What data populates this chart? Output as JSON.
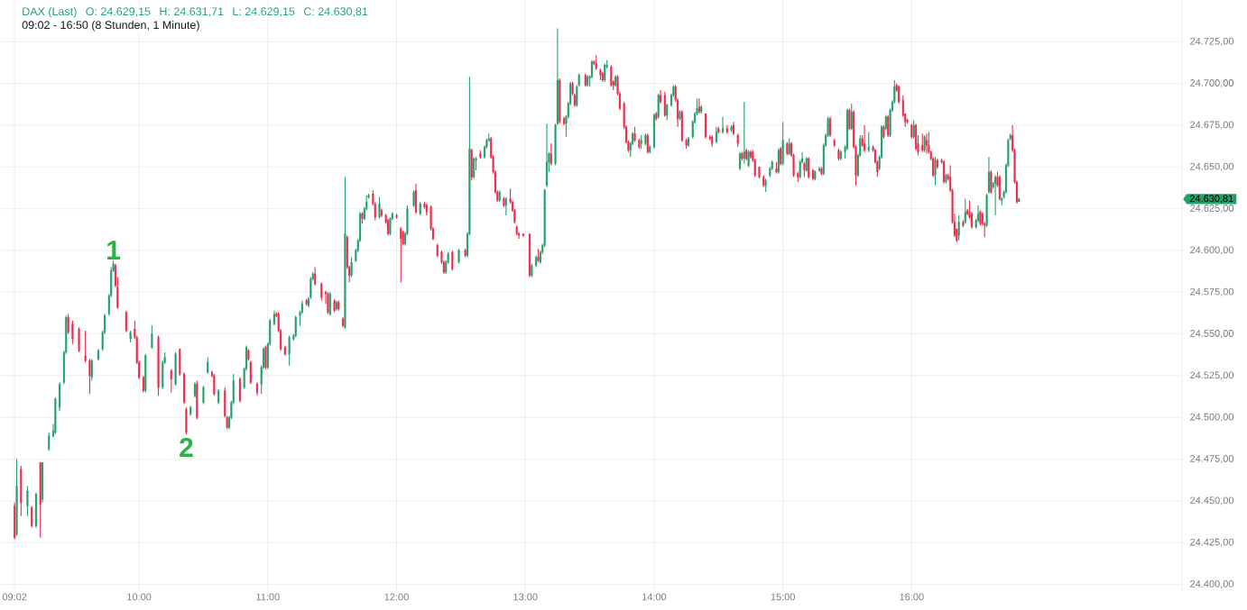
{
  "chart_data": {
    "type": "candlestick",
    "title": "DAX (Last)",
    "subtitle": "09:02 - 16:50 (8 Stunden, 1 Minute)",
    "annotations": [
      "O: 24.629,15",
      "H: 24.631,71",
      "L: 24.629,15",
      "C: 24.630,81",
      "24.630,81",
      {
        "text": "1",
        "x": 9.8,
        "y": 24594
      },
      {
        "text": "2",
        "x": 10.3667,
        "y": 24490
      }
    ],
    "x": [
      9.0333,
      9.05,
      9.0833,
      9.1333,
      9.1667,
      9.2,
      9.2333,
      9.25,
      9.3,
      9.3333,
      9.35,
      9.3833,
      9.4167,
      9.4333,
      9.45,
      9.4833,
      9.5333,
      9.5833,
      9.6167,
      9.6333,
      9.6833,
      9.7167,
      9.7333,
      9.7667,
      9.7833,
      9.8,
      9.8167,
      9.8333,
      9.9,
      9.9333,
      9.9667,
      9.9833,
      10.0,
      10.0333,
      10.05,
      10.1,
      10.15,
      10.1833,
      10.2,
      10.25,
      10.2833,
      10.3167,
      10.35,
      10.3667,
      10.4,
      10.4333,
      10.45,
      10.5,
      10.5333,
      10.5667,
      10.5833,
      10.6167,
      10.6667,
      10.6833,
      10.7,
      10.7167,
      10.7333,
      10.7833,
      10.8167,
      10.8333,
      10.85,
      10.8667,
      10.9167,
      10.95,
      10.9667,
      10.9833,
      11.0,
      11.0167,
      11.05,
      11.0667,
      11.0833,
      11.1,
      11.1333,
      11.1667,
      11.2,
      11.2167,
      11.25,
      11.2667,
      11.3,
      11.3167,
      11.3333,
      11.35,
      11.3667,
      11.4167,
      11.45,
      11.4667,
      11.4833,
      11.5167,
      11.5333,
      11.55,
      11.5833,
      11.6,
      11.6167,
      11.6333,
      11.65,
      11.6833,
      11.7,
      11.7167,
      11.7333,
      11.75,
      11.7667,
      11.7833,
      11.8167,
      11.8333,
      11.8667,
      11.8833,
      11.9167,
      11.9333,
      11.95,
      11.9667,
      12.0,
      12.0333,
      12.05,
      12.0667,
      12.0833,
      12.1333,
      12.15,
      12.1833,
      12.2167,
      12.2333,
      12.2667,
      12.2833,
      12.3167,
      12.35,
      12.3667,
      12.3833,
      12.4,
      12.4333,
      12.4833,
      12.5333,
      12.55,
      12.5667,
      12.5833,
      12.6,
      12.6167,
      12.65,
      12.6833,
      12.7,
      12.7167,
      12.7333,
      12.75,
      12.7667,
      12.7833,
      12.8,
      12.8333,
      12.85,
      12.8833,
      12.9,
      12.9167,
      12.9333,
      12.95,
      12.9833,
      13.0333,
      13.05,
      13.0833,
      13.1,
      13.1167,
      13.1333,
      13.15,
      13.1667,
      13.1833,
      13.2,
      13.2333,
      13.25,
      13.2667,
      13.3,
      13.3167,
      13.3333,
      13.35,
      13.3667,
      13.3833,
      13.4,
      13.4167,
      13.4667,
      13.4833,
      13.5,
      13.5167,
      13.5333,
      13.55,
      13.5833,
      13.6,
      13.6167,
      13.6333,
      13.6667,
      13.6833,
      13.7,
      13.7167,
      13.7333,
      13.7667,
      13.7833,
      13.8,
      13.8167,
      13.8333,
      13.85,
      13.8833,
      13.9,
      13.9333,
      13.95,
      13.9667,
      14.0,
      14.0167,
      14.0333,
      14.05,
      14.0833,
      14.1,
      14.1333,
      14.15,
      14.1667,
      14.1833,
      14.2,
      14.2167,
      14.25,
      14.2667,
      14.3,
      14.3167,
      14.3333,
      14.35,
      14.3667,
      14.4,
      14.4333,
      14.45,
      14.4833,
      14.5,
      14.5333,
      14.5667,
      14.6,
      14.6167,
      14.65,
      14.6667,
      14.6833,
      14.7,
      14.7167,
      14.7333,
      14.75,
      14.7667,
      14.7833,
      14.8167,
      14.85,
      14.8667,
      14.9,
      14.9167,
      14.95,
      14.9667,
      14.9833,
      15.0,
      15.0333,
      15.05,
      15.0667,
      15.0833,
      15.1167,
      15.1333,
      15.15,
      15.1667,
      15.1833,
      15.2,
      15.2333,
      15.25,
      15.2833,
      15.3,
      15.3167,
      15.3333,
      15.35,
      15.3667,
      15.4,
      15.4333,
      15.45,
      15.4833,
      15.5,
      15.5167,
      15.5333,
      15.55,
      15.5667,
      15.5833,
      15.6,
      15.6167,
      15.6333,
      15.6667,
      15.7,
      15.7167,
      15.7333,
      15.75,
      15.7667,
      15.7833,
      15.8,
      15.8167,
      15.8333,
      15.85,
      15.8667,
      15.8833,
      15.9,
      15.9333,
      15.95,
      15.9667,
      16.0,
      16.0167,
      16.0333,
      16.05,
      16.0833,
      16.1,
      16.1167,
      16.1333,
      16.15,
      16.1667,
      16.1833,
      16.2,
      16.2333,
      16.25,
      16.2667,
      16.2833,
      16.3,
      16.3167,
      16.3333,
      16.35,
      16.3667,
      16.4,
      16.4167,
      16.4333,
      16.45,
      16.4667,
      16.5,
      16.5167,
      16.5333,
      16.55,
      16.5667,
      16.5833,
      16.6,
      16.6167,
      16.6333,
      16.65,
      16.6667,
      16.6833,
      16.7,
      16.7167,
      16.7333,
      16.75,
      16.7667,
      16.7833,
      16.8,
      16.8167,
      16.8333
    ],
    "ohlc": [
      [
        24447,
        24449,
        24427,
        24428
      ],
      [
        24430,
        24475,
        24429,
        24459
      ],
      [
        24469,
        24471,
        24441,
        24449
      ],
      [
        24447,
        24459,
        24441,
        24456
      ],
      [
        24446,
        24447,
        24434,
        24435
      ],
      [
        24435,
        24455,
        24434,
        24454
      ],
      [
        24473,
        24473,
        24428,
        24448
      ],
      [
        24451,
        24473,
        24449,
        24473
      ],
      [
        24481,
        24491,
        24480,
        24489
      ],
      [
        24489,
        24496,
        24488,
        24492
      ],
      [
        24491,
        24512,
        24490,
        24511
      ],
      [
        24506,
        24521,
        24504,
        24520
      ],
      [
        24521,
        24540,
        24520,
        24539
      ],
      [
        24539,
        24561,
        24538,
        24560
      ],
      [
        24560,
        24562,
        24550,
        24551
      ],
      [
        24556,
        24558,
        24544,
        24547
      ],
      [
        24553,
        24554,
        24539,
        24540
      ],
      [
        24537,
        24552,
        24533,
        24534
      ],
      [
        24534,
        24535,
        24514,
        24525
      ],
      [
        24524,
        24535,
        24522,
        24534
      ],
      [
        24535,
        24541,
        24534,
        24540
      ],
      [
        24541,
        24552,
        24540,
        24551
      ],
      [
        24551,
        24562,
        24550,
        24561
      ],
      [
        24562,
        24574,
        24561,
        24573
      ],
      [
        24573,
        24590,
        24572,
        24588
      ],
      [
        24588,
        24594,
        24587,
        24592
      ],
      [
        24591,
        24592,
        24578,
        24579
      ],
      [
        24578,
        24584,
        24565,
        24566
      ],
      [
        24563,
        24564,
        24551,
        24552
      ],
      [
        24547,
        24552,
        24545,
        24551
      ],
      [
        24553,
        24558,
        24547,
        24548
      ],
      [
        24548,
        24549,
        24532,
        24533
      ],
      [
        24533,
        24534,
        24523,
        24524
      ],
      [
        24524,
        24525,
        24515,
        24516
      ],
      [
        24516,
        24538,
        24515,
        24537
      ],
      [
        24542,
        24555,
        24541,
        24550
      ],
      [
        24548,
        24549,
        24513,
        24518
      ],
      [
        24518,
        24534,
        24517,
        24533
      ],
      [
        24533,
        24539,
        24532,
        24536
      ],
      [
        24528,
        24529,
        24515,
        24523
      ],
      [
        24520,
        24539,
        24519,
        24538
      ],
      [
        24541,
        24541,
        24525,
        24526
      ],
      [
        24526,
        24527,
        24508,
        24509
      ],
      [
        24505,
        24506,
        24490,
        24491
      ],
      [
        24502,
        24507,
        24501,
        24506
      ],
      [
        24513,
        24521,
        24512,
        24520
      ],
      [
        24520,
        24522,
        24499,
        24500
      ],
      [
        24509,
        24519,
        24508,
        24518
      ],
      [
        24527,
        24536,
        24526,
        24533
      ],
      [
        24527,
        24528,
        24524,
        24525
      ],
      [
        24525,
        24526,
        24513,
        24514
      ],
      [
        24509,
        24517,
        24508,
        24516
      ],
      [
        24516,
        24518,
        24500,
        24501
      ],
      [
        24500,
        24501,
        24493,
        24494
      ],
      [
        24494,
        24501,
        24493,
        24500
      ],
      [
        24500,
        24510,
        24499,
        24509
      ],
      [
        24509,
        24526,
        24508,
        24522
      ],
      [
        24523,
        24524,
        24509,
        24510
      ],
      [
        24518,
        24530,
        24517,
        24529
      ],
      [
        24529,
        24543,
        24528,
        24542
      ],
      [
        24540,
        24541,
        24534,
        24535
      ],
      [
        24533,
        24534,
        24520,
        24521
      ],
      [
        24520,
        24521,
        24513,
        24515
      ],
      [
        24520,
        24531,
        24514,
        24530
      ],
      [
        24530,
        24542,
        24529,
        24541
      ],
      [
        24542,
        24543,
        24529,
        24530
      ],
      [
        24530,
        24545,
        24529,
        24544
      ],
      [
        24544,
        24559,
        24543,
        24558
      ],
      [
        24556,
        24564,
        24555,
        24562
      ],
      [
        24562,
        24563,
        24560,
        24561
      ],
      [
        24562,
        24563,
        24551,
        24552
      ],
      [
        24552,
        24553,
        24540,
        24541
      ],
      [
        24542,
        24543,
        24537,
        24538
      ],
      [
        24538,
        24549,
        24531,
        24548
      ],
      [
        24547,
        24550,
        24546,
        24549
      ],
      [
        24549,
        24561,
        24548,
        24560
      ],
      [
        24561,
        24564,
        24555,
        24563
      ],
      [
        24563,
        24570,
        24562,
        24568
      ],
      [
        24570,
        24571,
        24567,
        24568
      ],
      [
        24567,
        24572,
        24566,
        24571
      ],
      [
        24572,
        24584,
        24571,
        24583
      ],
      [
        24583,
        24587,
        24582,
        24586
      ],
      [
        24586,
        24590,
        24579,
        24580
      ],
      [
        24580,
        24581,
        24570,
        24572
      ],
      [
        24575,
        24576,
        24568,
        24574
      ],
      [
        24574,
        24575,
        24562,
        24563
      ],
      [
        24562,
        24575,
        24561,
        24574
      ],
      [
        24570,
        24571,
        24563,
        24564
      ],
      [
        24565,
        24570,
        24564,
        24569
      ],
      [
        24569,
        24570,
        24564,
        24565
      ],
      [
        24559,
        24560,
        24554,
        24555
      ],
      [
        24554,
        24644,
        24553,
        24610
      ],
      [
        24608,
        24609,
        24589,
        24590
      ],
      [
        24590,
        24591,
        24581,
        24585
      ],
      [
        24585,
        24596,
        24584,
        24593
      ],
      [
        24594,
        24601,
        24593,
        24600
      ],
      [
        24600,
        24607,
        24599,
        24606
      ],
      [
        24606,
        24623,
        24605,
        24622
      ],
      [
        24622,
        24623,
        24616,
        24619
      ],
      [
        24619,
        24626,
        24618,
        24625
      ],
      [
        24625,
        24633,
        24624,
        24629
      ],
      [
        24632,
        24634,
        24631,
        24633
      ],
      [
        24634,
        24636,
        24627,
        24628
      ],
      [
        24628,
        24629,
        24618,
        24620
      ],
      [
        24620,
        24632,
        24619,
        24628
      ],
      [
        24624,
        24625,
        24620,
        24621
      ],
      [
        24621,
        24622,
        24616,
        24617
      ],
      [
        24618,
        24619,
        24609,
        24610
      ],
      [
        24610,
        24620,
        24609,
        24619
      ],
      [
        24619,
        24623,
        24618,
        24622
      ],
      [
        24621,
        24622,
        24619,
        24620
      ],
      [
        24613,
        24614,
        24581,
        24607
      ],
      [
        24611,
        24612,
        24603,
        24604
      ],
      [
        24604,
        24611,
        24603,
        24610
      ],
      [
        24610,
        24627,
        24609,
        24625
      ],
      [
        24627,
        24636,
        24626,
        24635
      ],
      [
        24636,
        24640,
        24622,
        24623
      ],
      [
        24622,
        24629,
        24621,
        24628
      ],
      [
        24628,
        24629,
        24625,
        24626
      ],
      [
        24627,
        24628,
        24621,
        24623
      ],
      [
        24626,
        24627,
        24612,
        24613
      ],
      [
        24613,
        24614,
        24606,
        24607
      ],
      [
        24603,
        24604,
        24596,
        24597
      ],
      [
        24599,
        24600,
        24592,
        24593
      ],
      [
        24593,
        24594,
        24586,
        24587
      ],
      [
        24587,
        24594,
        24586,
        24593
      ],
      [
        24593,
        24599,
        24592,
        24598
      ],
      [
        24599,
        24600,
        24588,
        24589
      ],
      [
        24593,
        24601,
        24592,
        24600
      ],
      [
        24600,
        24601,
        24596,
        24597
      ],
      [
        24597,
        24611,
        24596,
        24610
      ],
      [
        24610,
        24704,
        24609,
        24661
      ],
      [
        24660,
        24661,
        24642,
        24644
      ],
      [
        24644,
        24656,
        24643,
        24655
      ],
      [
        24654,
        24656,
        24648,
        24655
      ],
      [
        24658,
        24660,
        24655,
        24656
      ],
      [
        24656,
        24663,
        24655,
        24662
      ],
      [
        24662,
        24667,
        24661,
        24666
      ],
      [
        24666,
        24670,
        24665,
        24667
      ],
      [
        24667,
        24668,
        24655,
        24656
      ],
      [
        24656,
        24657,
        24646,
        24647
      ],
      [
        24647,
        24648,
        24634,
        24635
      ],
      [
        24635,
        24636,
        24629,
        24630
      ],
      [
        24630,
        24636,
        24629,
        24635
      ],
      [
        24631,
        24632,
        24626,
        24627
      ],
      [
        24627,
        24632,
        24621,
        24631
      ],
      [
        24631,
        24637,
        24628,
        24629
      ],
      [
        24629,
        24630,
        24623,
        24624
      ],
      [
        24624,
        24625,
        24616,
        24617
      ],
      [
        24614,
        24615,
        24609,
        24610
      ],
      [
        24610,
        24611,
        24607,
        24609
      ],
      [
        24610,
        24610,
        24608,
        24609
      ],
      [
        24610,
        24610,
        24584,
        24585
      ],
      [
        24585,
        24592,
        24584,
        24591
      ],
      [
        24591,
        24597,
        24590,
        24596
      ],
      [
        24596,
        24601,
        24593,
        24594
      ],
      [
        24593,
        24600,
        24592,
        24599
      ],
      [
        24599,
        24604,
        24598,
        24603
      ],
      [
        24603,
        24637,
        24602,
        24636
      ],
      [
        24639,
        24676,
        24638,
        24653
      ],
      [
        24653,
        24659,
        24647,
        24658
      ],
      [
        24658,
        24664,
        24651,
        24652
      ],
      [
        24652,
        24676,
        24651,
        24675
      ],
      [
        24676,
        24733,
        24675,
        24702
      ],
      [
        24702,
        24703,
        24676,
        24677
      ],
      [
        24679,
        24680,
        24675,
        24676
      ],
      [
        24676,
        24681,
        24668,
        24680
      ],
      [
        24680,
        24689,
        24679,
        24688
      ],
      [
        24688,
        24701,
        24687,
        24700
      ],
      [
        24700,
        24701,
        24693,
        24694
      ],
      [
        24693,
        24694,
        24686,
        24687
      ],
      [
        24687,
        24699,
        24686,
        24698
      ],
      [
        24699,
        24706,
        24698,
        24705
      ],
      [
        24705,
        24706,
        24698,
        24699
      ],
      [
        24699,
        24705,
        24698,
        24704
      ],
      [
        24703,
        24705,
        24698,
        24704
      ],
      [
        24704,
        24714,
        24703,
        24713
      ],
      [
        24713,
        24714,
        24711,
        24712
      ],
      [
        24712,
        24717,
        24708,
        24709
      ],
      [
        24708,
        24709,
        24702,
        24705
      ],
      [
        24706,
        24707,
        24701,
        24702
      ],
      [
        24702,
        24712,
        24701,
        24711
      ],
      [
        24710,
        24714,
        24709,
        24711
      ],
      [
        24710,
        24711,
        24698,
        24699
      ],
      [
        24701,
        24702,
        24696,
        24699
      ],
      [
        24699,
        24705,
        24698,
        24704
      ],
      [
        24704,
        24705,
        24693,
        24694
      ],
      [
        24694,
        24695,
        24684,
        24685
      ],
      [
        24688,
        24689,
        24673,
        24674
      ],
      [
        24674,
        24675,
        24664,
        24665
      ],
      [
        24665,
        24666,
        24659,
        24660
      ],
      [
        24660,
        24665,
        24656,
        24664
      ],
      [
        24664,
        24671,
        24663,
        24670
      ],
      [
        24670,
        24674,
        24665,
        24666
      ],
      [
        24666,
        24667,
        24661,
        24662
      ],
      [
        24664,
        24669,
        24661,
        24666
      ],
      [
        24664,
        24670,
        24663,
        24669
      ],
      [
        24669,
        24670,
        24658,
        24659
      ],
      [
        24659,
        24663,
        24658,
        24662
      ],
      [
        24662,
        24682,
        24661,
        24681
      ],
      [
        24682,
        24683,
        24678,
        24679
      ],
      [
        24680,
        24694,
        24679,
        24693
      ],
      [
        24693,
        24696,
        24688,
        24689
      ],
      [
        24693,
        24695,
        24680,
        24681
      ],
      [
        24681,
        24688,
        24678,
        24687
      ],
      [
        24687,
        24694,
        24686,
        24693
      ],
      [
        24693,
        24699,
        24692,
        24698
      ],
      [
        24698,
        24699,
        24689,
        24690
      ],
      [
        24690,
        24691,
        24674,
        24679
      ],
      [
        24679,
        24684,
        24678,
        24683
      ],
      [
        24683,
        24684,
        24665,
        24666
      ],
      [
        24666,
        24667,
        24661,
        24663
      ],
      [
        24663,
        24668,
        24662,
        24667
      ],
      [
        24668,
        24678,
        24667,
        24677
      ],
      [
        24677,
        24683,
        24676,
        24682
      ],
      [
        24682,
        24691,
        24681,
        24685
      ],
      [
        24686,
        24691,
        24682,
        24683
      ],
      [
        24683,
        24687,
        24682,
        24686
      ],
      [
        24682,
        24682,
        24667,
        24668
      ],
      [
        24668,
        24669,
        24666,
        24667
      ],
      [
        24668,
        24669,
        24662,
        24664
      ],
      [
        24665,
        24674,
        24664,
        24671
      ],
      [
        24673,
        24674,
        24670,
        24671
      ],
      [
        24671,
        24680,
        24670,
        24673
      ],
      [
        24673,
        24675,
        24670,
        24671
      ],
      [
        24672,
        24675,
        24671,
        24674
      ],
      [
        24675,
        24677,
        24669,
        24670
      ],
      [
        24669,
        24670,
        24662,
        24664
      ],
      [
        24649,
        24659,
        24648,
        24658
      ],
      [
        24658,
        24659,
        24654,
        24655
      ],
      [
        24655,
        24689,
        24652,
        24659
      ],
      [
        24660,
        24661,
        24654,
        24655
      ],
      [
        24651,
        24660,
        24650,
        24659
      ],
      [
        24659,
        24660,
        24655,
        24656
      ],
      [
        24659,
        24660,
        24653,
        24654
      ],
      [
        24654,
        24655,
        24644,
        24645
      ],
      [
        24650,
        24650,
        24643,
        24644
      ],
      [
        24644,
        24645,
        24638,
        24639
      ],
      [
        24639,
        24643,
        24635,
        24642
      ],
      [
        24645,
        24650,
        24644,
        24649
      ],
      [
        24649,
        24654,
        24648,
        24653
      ],
      [
        24649,
        24653,
        24646,
        24647
      ],
      [
        24647,
        24661,
        24646,
        24660
      ],
      [
        24661,
        24662,
        24651,
        24652
      ],
      [
        24652,
        24677,
        24651,
        24666
      ],
      [
        24664,
        24665,
        24657,
        24658
      ],
      [
        24658,
        24667,
        24657,
        24664
      ],
      [
        24664,
        24665,
        24656,
        24657
      ],
      [
        24657,
        24658,
        24644,
        24645
      ],
      [
        24646,
        24647,
        24641,
        24644
      ],
      [
        24644,
        24654,
        24643,
        24653
      ],
      [
        24653,
        24659,
        24652,
        24655
      ],
      [
        24652,
        24653,
        24644,
        24648
      ],
      [
        24648,
        24656,
        24647,
        24655
      ],
      [
        24655,
        24656,
        24643,
        24644
      ],
      [
        24648,
        24649,
        24642,
        24643
      ],
      [
        24643,
        24648,
        24642,
        24647
      ],
      [
        24648,
        24650,
        24647,
        24649
      ],
      [
        24649,
        24650,
        24645,
        24646
      ],
      [
        24646,
        24664,
        24645,
        24663
      ],
      [
        24663,
        24670,
        24662,
        24669
      ],
      [
        24669,
        24680,
        24668,
        24679
      ],
      [
        24679,
        24680,
        24668,
        24669
      ],
      [
        24666,
        24667,
        24662,
        24663
      ],
      [
        24660,
        24661,
        24654,
        24655
      ],
      [
        24655,
        24660,
        24654,
        24659
      ],
      [
        24659,
        24663,
        24655,
        24662
      ],
      [
        24661,
        24685,
        24660,
        24684
      ],
      [
        24684,
        24685,
        24672,
        24673
      ],
      [
        24673,
        24688,
        24672,
        24683
      ],
      [
        24683,
        24684,
        24661,
        24662
      ],
      [
        24662,
        24663,
        24639,
        24645
      ],
      [
        24645,
        24658,
        24644,
        24657
      ],
      [
        24657,
        24669,
        24656,
        24667
      ],
      [
        24667,
        24669,
        24662,
        24663
      ],
      [
        24664,
        24675,
        24659,
        24660
      ],
      [
        24660,
        24671,
        24659,
        24662
      ],
      [
        24662,
        24663,
        24659,
        24660
      ],
      [
        24660,
        24661,
        24652,
        24653
      ],
      [
        24653,
        24654,
        24644,
        24647
      ],
      [
        24649,
        24657,
        24648,
        24656
      ],
      [
        24656,
        24675,
        24655,
        24674
      ],
      [
        24674,
        24675,
        24667,
        24668
      ],
      [
        24673,
        24681,
        24672,
        24680
      ],
      [
        24680,
        24681,
        24668,
        24669
      ],
      [
        24669,
        24685,
        24668,
        24684
      ],
      [
        24684,
        24690,
        24683,
        24689
      ],
      [
        24689,
        24702,
        24688,
        24698
      ],
      [
        24699,
        24700,
        24695,
        24696
      ],
      [
        24698,
        24699,
        24688,
        24689
      ],
      [
        24690,
        24693,
        24680,
        24681
      ],
      [
        24682,
        24682,
        24674,
        24677
      ],
      [
        24678,
        24679,
        24676,
        24677
      ],
      [
        24675,
        24676,
        24667,
        24668
      ],
      [
        24668,
        24678,
        24667,
        24675
      ],
      [
        24675,
        24676,
        24660,
        24661
      ],
      [
        24664,
        24669,
        24657,
        24659
      ],
      [
        24663,
        24670,
        24659,
        24660
      ],
      [
        24660,
        24669,
        24659,
        24668
      ],
      [
        24666,
        24670,
        24658,
        24663
      ],
      [
        24663,
        24671,
        24658,
        24659
      ],
      [
        24659,
        24660,
        24654,
        24655
      ],
      [
        24655,
        24656,
        24644,
        24645
      ],
      [
        24645,
        24656,
        24639,
        24654
      ],
      [
        24654,
        24655,
        24649,
        24650
      ],
      [
        24654,
        24655,
        24652,
        24653
      ],
      [
        24653,
        24654,
        24640,
        24641
      ],
      [
        24641,
        24646,
        24640,
        24645
      ],
      [
        24645,
        24646,
        24642,
        24643
      ],
      [
        24644,
        24651,
        24635,
        24636
      ],
      [
        24636,
        24637,
        24616,
        24617
      ],
      [
        24617,
        24622,
        24608,
        24609
      ],
      [
        24613,
        24613,
        24605,
        24606
      ],
      [
        24609,
        24621,
        24606,
        24617
      ],
      [
        24617,
        24618,
        24614,
        24615
      ],
      [
        24617,
        24631,
        24616,
        24623
      ],
      [
        24624,
        24625,
        24621,
        24622
      ],
      [
        24623,
        24630,
        24619,
        24620
      ],
      [
        24622,
        24623,
        24613,
        24614
      ],
      [
        24614,
        24619,
        24613,
        24618
      ],
      [
        24618,
        24627,
        24617,
        24622
      ],
      [
        24623,
        24624,
        24615,
        24616
      ],
      [
        24622,
        24623,
        24615,
        24616
      ],
      [
        24616,
        24617,
        24608,
        24615
      ],
      [
        24615,
        24634,
        24614,
        24633
      ],
      [
        24635,
        24656,
        24634,
        24647
      ],
      [
        24647,
        24648,
        24634,
        24635
      ],
      [
        24638,
        24641,
        24637,
        24640
      ],
      [
        24640,
        24645,
        24621,
        24644
      ],
      [
        24644,
        24647,
        24638,
        24639
      ],
      [
        24644,
        24645,
        24630,
        24631
      ],
      [
        24630,
        24632,
        24627,
        24631
      ],
      [
        24632,
        24636,
        24631,
        24635
      ],
      [
        24635,
        24652,
        24634,
        24651
      ],
      [
        24651,
        24667,
        24650,
        24666
      ],
      [
        24667,
        24670,
        24666,
        24669
      ],
      [
        24669,
        24675,
        24659,
        24660
      ],
      [
        24660,
        24661,
        24640,
        24641
      ],
      [
        24641,
        24642,
        24628,
        24629
      ],
      [
        24629.15,
        24631.71,
        24629.15,
        24630.81
      ]
    ],
    "xlim": [
      8.92,
      18.1
    ],
    "xticks": [
      {
        "value": 9.0333,
        "label": "09:02"
      },
      {
        "value": 10,
        "label": "10:00"
      },
      {
        "value": 11,
        "label": "11:00"
      },
      {
        "value": 12,
        "label": "12:00"
      },
      {
        "value": 13,
        "label": "13:00"
      },
      {
        "value": 14,
        "label": "14:00"
      },
      {
        "value": 15,
        "label": "15:00"
      },
      {
        "value": 16,
        "label": "16:00"
      }
    ],
    "ylim": [
      24396,
      24750
    ],
    "yticks": [
      {
        "value": 24400,
        "label": "24.400,00"
      },
      {
        "value": 24425,
        "label": "24.425,00"
      },
      {
        "value": 24450,
        "label": "24.450,00"
      },
      {
        "value": 24475,
        "label": "24.475,00"
      },
      {
        "value": 24500,
        "label": "24.500,00"
      },
      {
        "value": 24525,
        "label": "24.525,00"
      },
      {
        "value": 24550,
        "label": "24.550,00"
      },
      {
        "value": 24575,
        "label": "24.575,00"
      },
      {
        "value": 24600,
        "label": "24.600,00"
      },
      {
        "value": 24625,
        "label": "24.625,00"
      },
      {
        "value": 24650,
        "label": "24.650,00"
      },
      {
        "value": 24675,
        "label": "24.675,00"
      },
      {
        "value": 24700,
        "label": "24.700,00"
      },
      {
        "value": 24725,
        "label": "24.725,00"
      }
    ],
    "grid": true
  }
}
